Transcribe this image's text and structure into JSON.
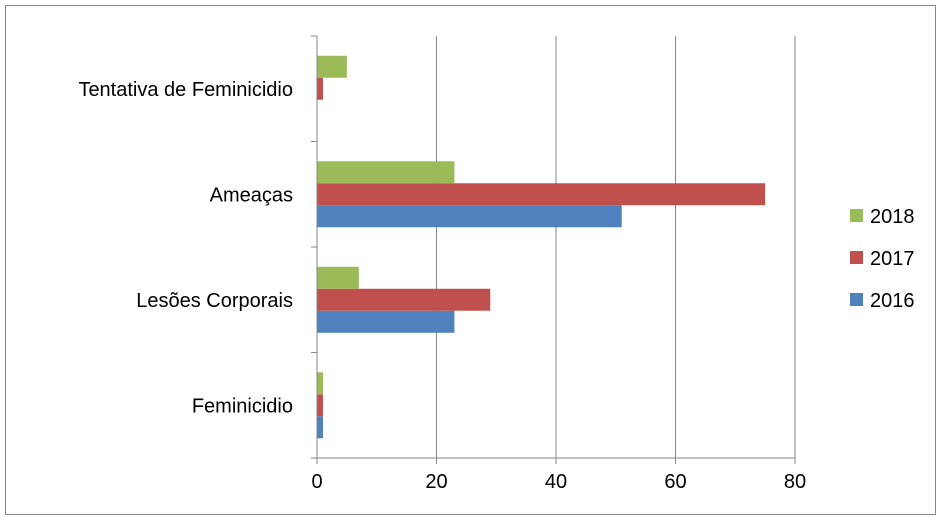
{
  "chart_data": {
    "type": "bar",
    "orientation": "horizontal",
    "categories": [
      "Feminicidio",
      "Lesões Corporais",
      "Ameaças",
      "Tentativa de Feminicidio"
    ],
    "series": [
      {
        "name": "2016",
        "color": "#4F81BD",
        "values": [
          1,
          23,
          51,
          0
        ]
      },
      {
        "name": "2017",
        "color": "#C0504D",
        "values": [
          1,
          29,
          75,
          1
        ]
      },
      {
        "name": "2018",
        "color": "#9BBB59",
        "values": [
          1,
          7,
          23,
          5
        ]
      }
    ],
    "x_ticks": [
      "0",
      "20",
      "40",
      "60",
      "80"
    ],
    "xlim": [
      0,
      80
    ],
    "grid": "vertical major gridlines",
    "legend_position": "right",
    "legend_order": [
      "2018",
      "2017",
      "2016"
    ]
  }
}
